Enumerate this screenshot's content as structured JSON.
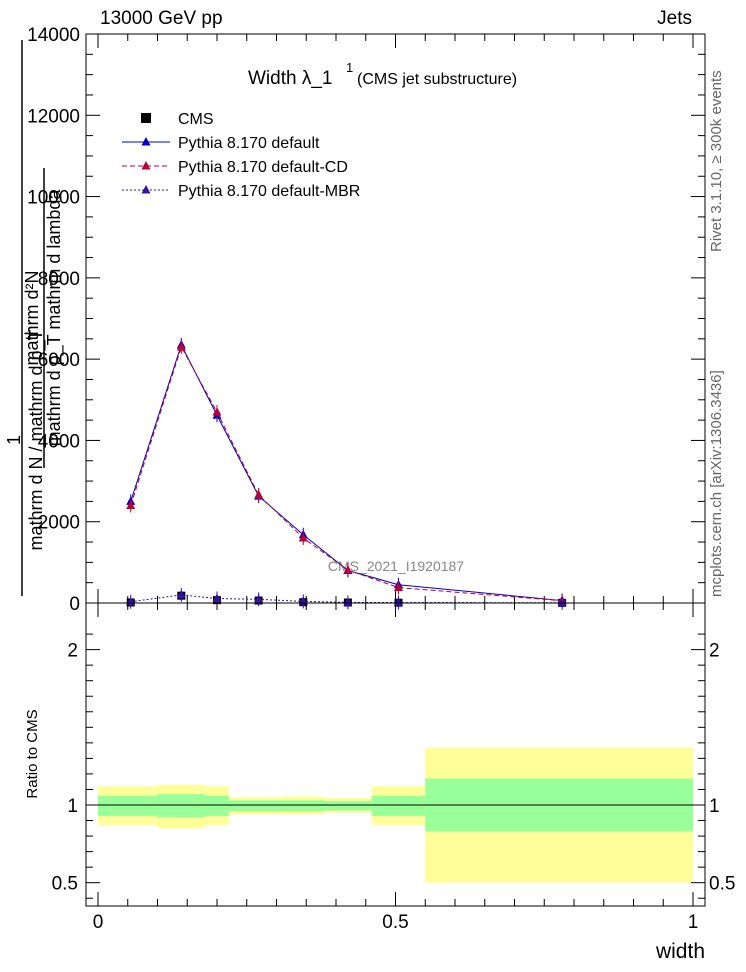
{
  "header": {
    "left": "13000 GeV pp",
    "right": "Jets"
  },
  "side_labels": {
    "rivet": "Rivet 3.1.10, ≥ 300k events",
    "mcplots": "mcplots.cern.ch [arXiv:1306.3436]"
  },
  "chart_data": [
    {
      "type": "line",
      "title": "Width λ_1",
      "title_superscript": "1",
      "title_suffix": "(CMS jet substructure)",
      "watermark": "CMS_2021_I1920187",
      "ylabel_top": "mathrm d²N",
      "ylabel_top_sub": "mathrm d p_T mathrm d lambda",
      "ylabel_one": "1",
      "ylabel_bottom": "mathrm d N / mathrm d p_T",
      "xlim": [
        0,
        1
      ],
      "ylim": [
        0,
        14000
      ],
      "yticks": [
        0,
        2000,
        4000,
        6000,
        8000,
        10000,
        12000,
        14000
      ],
      "legend_position": "top-left",
      "x": [
        0.055,
        0.14,
        0.2,
        0.27,
        0.345,
        0.42,
        0.505,
        0.78
      ],
      "x_edges": [
        0.0,
        0.1,
        0.18,
        0.22,
        0.31,
        0.38,
        0.46,
        0.55,
        1.0
      ],
      "series": [
        {
          "name": "CMS",
          "color": "#000000",
          "marker": "square",
          "values": [
            12,
            180,
            70,
            60,
            20,
            12,
            8,
            4
          ]
        },
        {
          "name": "Pythia 8.170 default",
          "color": "#0000cc",
          "marker": "triangle",
          "dash": "",
          "values": [
            2500,
            6350,
            4620,
            2630,
            1680,
            800,
            450,
            60
          ]
        },
        {
          "name": "Pythia 8.170 default-CD",
          "color": "#bb0033",
          "marker": "triangle",
          "dash": "5,3",
          "values": [
            2400,
            6300,
            4700,
            2660,
            1600,
            810,
            380,
            55
          ]
        },
        {
          "name": "Pythia 8.170 default-MBR",
          "color": "#3311aa",
          "marker": "triangle",
          "dash": "2,2",
          "values": [
            30,
            200,
            110,
            90,
            40,
            15,
            10,
            5
          ]
        }
      ]
    },
    {
      "type": "area",
      "ylabel": "Ratio to CMS",
      "xlabel": "width",
      "xlim": [
        0,
        1
      ],
      "ylim": [
        0.35,
        2.3
      ],
      "yticks": [
        0.5,
        1,
        2
      ],
      "ytick_labels": [
        "0.5",
        "1",
        "2"
      ],
      "xticks": [
        0,
        0.5,
        1
      ],
      "xtick_labels": [
        "0",
        "0.5",
        "1"
      ],
      "band_colors": {
        "inner": "#99ff99",
        "outer": "#ffff99"
      },
      "bands": [
        {
          "x0": 0.0,
          "x1": 0.1,
          "inner": [
            0.93,
            1.06
          ],
          "outer": [
            0.87,
            1.12
          ]
        },
        {
          "x0": 0.1,
          "x1": 0.18,
          "inner": [
            0.92,
            1.07
          ],
          "outer": [
            0.85,
            1.13
          ]
        },
        {
          "x0": 0.18,
          "x1": 0.22,
          "inner": [
            0.93,
            1.06
          ],
          "outer": [
            0.87,
            1.12
          ]
        },
        {
          "x0": 0.22,
          "x1": 0.31,
          "inner": [
            0.96,
            1.03
          ],
          "outer": [
            0.94,
            1.05
          ]
        },
        {
          "x0": 0.31,
          "x1": 0.38,
          "inner": [
            0.96,
            1.03
          ],
          "outer": [
            0.94,
            1.055
          ]
        },
        {
          "x0": 0.38,
          "x1": 0.46,
          "inner": [
            0.965,
            1.025
          ],
          "outer": [
            0.95,
            1.045
          ]
        },
        {
          "x0": 0.46,
          "x1": 0.55,
          "inner": [
            0.93,
            1.06
          ],
          "outer": [
            0.87,
            1.12
          ]
        },
        {
          "x0": 0.55,
          "x1": 1.0,
          "inner": [
            0.83,
            1.17
          ],
          "outer": [
            0.5,
            1.37
          ]
        }
      ]
    }
  ]
}
